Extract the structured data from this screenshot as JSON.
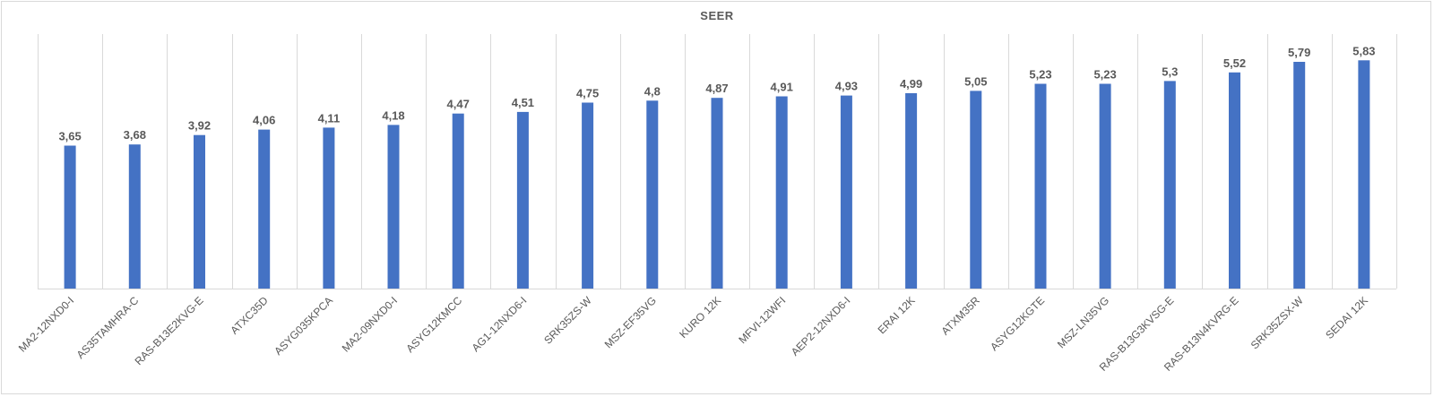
{
  "chart_data": {
    "type": "bar",
    "title": "SEER",
    "xlabel": "",
    "ylabel": "",
    "ylim": [
      0,
      6.5
    ],
    "grid": "vertical",
    "legend": "none",
    "bar_color": "#4472c4",
    "gridline_color": "#d9d9d9",
    "text_color": "#595959",
    "categories": [
      "MA2-12NXD0-I",
      "AS35TAMHRA-C",
      "RAS-B13E2KVG-E",
      "ATXC35D",
      "ASYG035KPCA",
      "MA2-09NXD0-I",
      "ASYG12KMCC",
      "AG1-12NXD6-I",
      "SRK35ZS-W",
      "MSZ-EF35VG",
      "KURO 12K",
      "MFVI-12WFI",
      "AEP2-12NXD6-I",
      "ERAI 12K",
      "ATXM35R",
      "ASYG12KGTE",
      "MSZ-LN35VG",
      "RAS-B13G3KVSG-E",
      "RAS-B13N4KVRG-E",
      "SRK35ZSX-W",
      "SEDAI 12K"
    ],
    "values": [
      3.65,
      3.68,
      3.92,
      4.06,
      4.11,
      4.18,
      4.47,
      4.51,
      4.75,
      4.8,
      4.87,
      4.91,
      4.93,
      4.99,
      5.05,
      5.23,
      5.23,
      5.3,
      5.52,
      5.79,
      5.83
    ],
    "value_labels": [
      "3,65",
      "3,68",
      "3,92",
      "4,06",
      "4,11",
      "4,18",
      "4,47",
      "4,51",
      "4,75",
      "4,8",
      "4,87",
      "4,91",
      "4,93",
      "4,99",
      "5,05",
      "5,23",
      "5,23",
      "5,3",
      "5,52",
      "5,79",
      "5,83"
    ]
  }
}
